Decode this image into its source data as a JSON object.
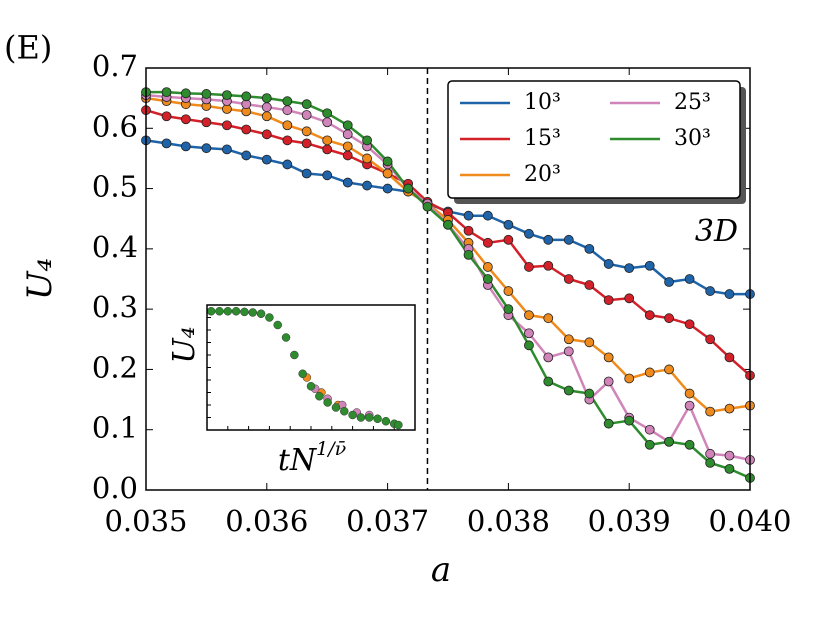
{
  "chart_data": {
    "type": "line",
    "panel_label": "(E)",
    "xlabel": "a",
    "ylabel": "U₄",
    "annotation": "3D",
    "vline": 0.03733,
    "xlim": [
      0.035,
      0.04
    ],
    "ylim": [
      0,
      0.7
    ],
    "xticks": [
      0.035,
      0.036,
      0.037,
      0.038,
      0.039,
      {
        "value": 0.04,
        "label": "0.040"
      }
    ],
    "yticks": [
      {
        "value": 0,
        "label": "0.0"
      },
      0.1,
      0.2,
      0.3,
      0.4,
      0.5,
      0.6,
      0.7
    ],
    "x": [
      0.035,
      0.03517,
      0.03533,
      0.0355,
      0.03567,
      0.03583,
      0.036,
      0.03617,
      0.03633,
      0.0365,
      0.03667,
      0.03683,
      0.037,
      0.03717,
      0.03733,
      0.0375,
      0.03767,
      0.03783,
      0.038,
      0.03817,
      0.03833,
      0.0385,
      0.03867,
      0.03883,
      0.039,
      0.03917,
      0.03933,
      0.0395,
      0.03967,
      0.03983,
      0.04
    ],
    "series": [
      {
        "name": "10³",
        "color": "#1f63a8",
        "values": [
          0.58,
          0.575,
          0.57,
          0.567,
          0.565,
          0.555,
          0.548,
          0.54,
          0.525,
          0.522,
          0.51,
          0.505,
          0.5,
          0.495,
          0.475,
          0.462,
          0.455,
          0.455,
          0.44,
          0.425,
          0.415,
          0.415,
          0.4,
          0.375,
          0.368,
          0.372,
          0.345,
          0.35,
          0.33,
          0.325,
          0.325
        ]
      },
      {
        "name": "15³",
        "color": "#d42029",
        "values": [
          0.63,
          0.62,
          0.615,
          0.61,
          0.605,
          0.598,
          0.59,
          0.58,
          0.575,
          0.565,
          0.555,
          0.54,
          0.525,
          0.508,
          0.478,
          0.46,
          0.43,
          0.41,
          0.415,
          0.37,
          0.372,
          0.35,
          0.34,
          0.315,
          0.318,
          0.29,
          0.285,
          0.275,
          0.25,
          0.22,
          0.19
        ]
      },
      {
        "name": "20³",
        "color": "#ef8a1c",
        "values": [
          0.65,
          0.645,
          0.64,
          0.637,
          0.632,
          0.628,
          0.62,
          0.605,
          0.595,
          0.58,
          0.57,
          0.55,
          0.525,
          0.495,
          0.475,
          0.448,
          0.41,
          0.37,
          0.33,
          0.29,
          0.285,
          0.25,
          0.245,
          0.22,
          0.185,
          0.195,
          0.2,
          0.16,
          0.13,
          0.135,
          0.14
        ]
      },
      {
        "name": "25³",
        "color": "#d084b9",
        "values": [
          0.655,
          0.652,
          0.65,
          0.648,
          0.645,
          0.64,
          0.635,
          0.63,
          0.622,
          0.61,
          0.59,
          0.57,
          0.54,
          0.5,
          0.475,
          0.44,
          0.4,
          0.34,
          0.29,
          0.26,
          0.22,
          0.23,
          0.15,
          0.18,
          0.12,
          0.1,
          0.08,
          0.14,
          0.06,
          0.057,
          0.05
        ]
      },
      {
        "name": "30³",
        "color": "#2e8b2e",
        "values": [
          0.66,
          0.66,
          0.658,
          0.657,
          0.655,
          0.653,
          0.65,
          0.645,
          0.64,
          0.625,
          0.605,
          0.58,
          0.545,
          0.5,
          0.47,
          0.44,
          0.39,
          0.35,
          0.3,
          0.24,
          0.18,
          0.165,
          0.16,
          0.11,
          0.115,
          0.075,
          0.08,
          0.075,
          0.045,
          0.035,
          0.02
        ]
      }
    ],
    "inset": {
      "type": "scatter",
      "ylabel": "U₄",
      "xlabel": "tN",
      "xlabel_sup": "1/ν̄",
      "xlim": [
        0,
        10
      ],
      "ylim": [
        0,
        1
      ],
      "series": [
        {
          "color": "#ef8a1c",
          "x": [
            4.8,
            5.5,
            6.3
          ],
          "values": [
            0.42,
            0.3,
            0.2
          ]
        },
        {
          "color": "#d084b9",
          "x": [
            5.2,
            5.8,
            6.5,
            7.2,
            7.8
          ],
          "values": [
            0.33,
            0.25,
            0.2,
            0.14,
            0.12
          ]
        },
        {
          "color": "#2e8b2e",
          "x": [
            0.2,
            0.6,
            1.0,
            1.4,
            1.8,
            2.2,
            2.6,
            3.0,
            3.4,
            3.8,
            4.2,
            4.6,
            5.0,
            5.4,
            5.8,
            6.2,
            6.6,
            7.0,
            7.4,
            7.8,
            8.2,
            8.6,
            9.0,
            9.2
          ],
          "values": [
            0.95,
            0.95,
            0.95,
            0.95,
            0.945,
            0.94,
            0.93,
            0.9,
            0.84,
            0.74,
            0.6,
            0.45,
            0.35,
            0.27,
            0.22,
            0.18,
            0.15,
            0.12,
            0.1,
            0.1,
            0.09,
            0.07,
            0.05,
            0.04
          ]
        }
      ]
    }
  }
}
